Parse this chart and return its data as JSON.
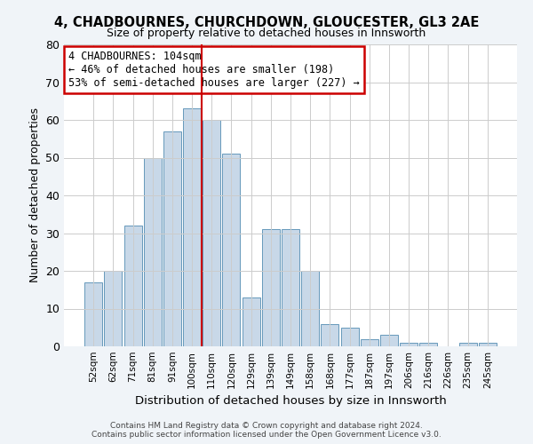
{
  "title1": "4, CHADBOURNES, CHURCHDOWN, GLOUCESTER, GL3 2AE",
  "title2": "Size of property relative to detached houses in Innsworth",
  "xlabel": "Distribution of detached houses by size in Innsworth",
  "ylabel": "Number of detached properties",
  "bar_labels": [
    "52sqm",
    "62sqm",
    "71sqm",
    "81sqm",
    "91sqm",
    "100sqm",
    "110sqm",
    "120sqm",
    "129sqm",
    "139sqm",
    "149sqm",
    "158sqm",
    "168sqm",
    "177sqm",
    "187sqm",
    "197sqm",
    "206sqm",
    "216sqm",
    "226sqm",
    "235sqm",
    "245sqm"
  ],
  "bar_values": [
    17,
    20,
    32,
    50,
    57,
    63,
    60,
    51,
    13,
    31,
    31,
    20,
    6,
    5,
    2,
    3,
    1,
    1,
    0,
    1,
    1
  ],
  "bar_color": "#c8d8e8",
  "bar_edgecolor": "#6699bb",
  "vline_x": 5.5,
  "vline_color": "#cc0000",
  "annotation_title": "4 CHADBOURNES: 104sqm",
  "annotation_line1": "← 46% of detached houses are smaller (198)",
  "annotation_line2": "53% of semi-detached houses are larger (227) →",
  "annotation_box_color": "#ffffff",
  "annotation_box_edgecolor": "#cc0000",
  "ylim": [
    0,
    80
  ],
  "yticks": [
    0,
    10,
    20,
    30,
    40,
    50,
    60,
    70,
    80
  ],
  "footer1": "Contains HM Land Registry data © Crown copyright and database right 2024.",
  "footer2": "Contains public sector information licensed under the Open Government Licence v3.0.",
  "background_color": "#f0f4f8",
  "plot_background": "#ffffff",
  "grid_color": "#cccccc"
}
